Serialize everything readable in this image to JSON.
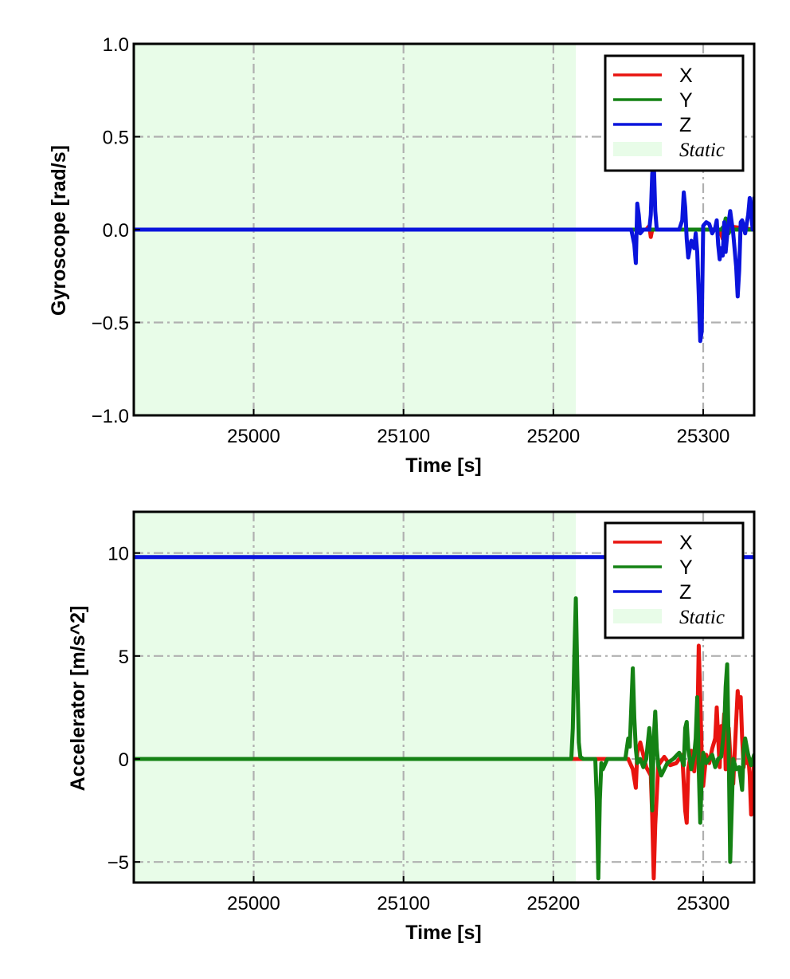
{
  "colors": {
    "x": "#e8140f",
    "y": "#148214",
    "z": "#0a14dc",
    "static_fill": "#e8fce8",
    "grid": "#b0b0b0"
  },
  "chart_data": [
    {
      "type": "line",
      "xlabel": "Time [s]",
      "ylabel": "Gyroscope [rad/s]",
      "xlim": [
        24920,
        25334
      ],
      "ylim": [
        -1.0,
        1.0
      ],
      "xticks": [
        25000,
        25100,
        25200,
        25300
      ],
      "xtick_labels": [
        "25000",
        "25100",
        "25200",
        "25300"
      ],
      "yticks": [
        -1.0,
        -0.5,
        0.0,
        0.5,
        1.0
      ],
      "ytick_labels": [
        "−1.0",
        "−0.5",
        "0.0",
        "0.5",
        "1.0"
      ],
      "grid": true,
      "legend_position": "top-right",
      "static_region": {
        "label": "Static",
        "x_start": 24920,
        "x_end": 25215
      },
      "series": [
        {
          "name": "X",
          "color_key": "x",
          "x": [
            24920,
            25250,
            25262,
            25264,
            25265,
            25266,
            25268,
            25280,
            25300,
            25311,
            25313,
            25315,
            25334
          ],
          "y": [
            0,
            0,
            0,
            0.02,
            -0.04,
            0.0,
            0,
            0,
            0,
            0.0,
            -0.05,
            0.02,
            0
          ]
        },
        {
          "name": "Y",
          "color_key": "y",
          "x": [
            24920,
            25250,
            25312,
            25314,
            25315,
            25316,
            25317,
            25318,
            25334
          ],
          "y": [
            0,
            0,
            0,
            0.02,
            0.06,
            0.02,
            -0.02,
            0,
            0
          ]
        },
        {
          "name": "Z",
          "color_key": "z",
          "x": [
            24920,
            25252,
            25254,
            25255,
            25256,
            25257,
            25258,
            25260,
            25264,
            25265,
            25266,
            25267,
            25268,
            25269,
            25270,
            25274,
            25284,
            25286,
            25287,
            25288,
            25289,
            25290,
            25292,
            25294,
            25295,
            25296,
            25297,
            25298,
            25299,
            25300,
            25302,
            25304,
            25306,
            25308,
            25309,
            25310,
            25311,
            25312,
            25313,
            25314,
            25315,
            25316,
            25317,
            25318,
            25320,
            25322,
            25323,
            25324,
            25325,
            25326,
            25327,
            25328,
            25329,
            25330,
            25331,
            25332,
            25333,
            25334
          ],
          "y": [
            0,
            0,
            -0.08,
            -0.18,
            0.14,
            0.08,
            -0.02,
            0.0,
            0.0,
            0.08,
            0.3,
            0.37,
            0.1,
            0.0,
            0.0,
            0.0,
            0.0,
            0.05,
            0.2,
            0.12,
            -0.05,
            -0.15,
            -0.06,
            -0.1,
            -0.02,
            -0.12,
            -0.35,
            -0.6,
            -0.55,
            0.02,
            0.04,
            0.03,
            -0.02,
            0.01,
            0.05,
            -0.08,
            -0.16,
            -0.1,
            -0.14,
            0.04,
            -0.12,
            -0.03,
            0.04,
            0.1,
            -0.02,
            -0.2,
            -0.36,
            -0.22,
            0.04,
            0.05,
            0.02,
            -0.02,
            0.03,
            0.08,
            0.17,
            0.09,
            0.0,
            0.17
          ]
        }
      ]
    },
    {
      "type": "line",
      "xlabel": "Time [s]",
      "ylabel": "Accelerator [m/s^2]",
      "xlim": [
        24920,
        25334
      ],
      "ylim": [
        -6,
        12
      ],
      "xticks": [
        25000,
        25100,
        25200,
        25300
      ],
      "xtick_labels": [
        "25000",
        "25100",
        "25200",
        "25300"
      ],
      "yticks": [
        -5,
        0,
        5,
        10
      ],
      "ytick_labels": [
        "−5",
        "0",
        "5",
        "10"
      ],
      "grid": true,
      "legend_position": "top-right",
      "static_region": {
        "label": "Static",
        "x_start": 24920,
        "x_end": 25215
      },
      "series": [
        {
          "name": "Z",
          "color_key": "z",
          "x": [
            24920,
            25334
          ],
          "y": [
            9.8,
            9.8
          ]
        },
        {
          "name": "X",
          "color_key": "x",
          "x": [
            24920,
            25250,
            25253,
            25255,
            25256,
            25258,
            25262,
            25265,
            25266,
            25267,
            25268,
            25270,
            25274,
            25278,
            25282,
            25286,
            25288,
            25289,
            25290,
            25292,
            25294,
            25296,
            25297,
            25298,
            25299,
            25300,
            25302,
            25304,
            25306,
            25308,
            25309,
            25310,
            25311,
            25312,
            25313,
            25314,
            25315,
            25316,
            25317,
            25318,
            25320,
            25322,
            25323,
            25324,
            25325,
            25326,
            25327,
            25328,
            25329,
            25330,
            25331,
            25332,
            25333,
            25334
          ],
          "y": [
            0,
            0,
            -0.5,
            -1.4,
            0.3,
            0.8,
            -0.4,
            -0.8,
            -2.8,
            -5.8,
            -3.2,
            -0.3,
            0.1,
            -0.3,
            -0.2,
            0.2,
            -2.5,
            -3.1,
            -0.5,
            0.4,
            -0.6,
            1.2,
            5.5,
            3.0,
            0.2,
            -1.3,
            0.2,
            -0.2,
            0.5,
            1.0,
            2.5,
            1.0,
            -0.4,
            1.6,
            1.0,
            2.2,
            -0.5,
            0.5,
            1.5,
            0.2,
            -1.2,
            1.8,
            3.3,
            2.5,
            3.0,
            1.0,
            -0.4,
            0.5,
            -0.2,
            0.2,
            -0.8,
            -2.7,
            -1.3,
            0.0
          ]
        },
        {
          "name": "Y",
          "color_key": "y",
          "x": [
            24920,
            25212,
            25213,
            25214,
            25215,
            25216,
            25217,
            25218,
            25220,
            25222,
            25225,
            25228,
            25229,
            25230,
            25231,
            25232,
            25233,
            25236,
            25240,
            25248,
            25250,
            25251,
            25252,
            25253,
            25254,
            25255,
            25256,
            25258,
            25260,
            25262,
            25264,
            25265,
            25266,
            25267,
            25268,
            25269,
            25270,
            25272,
            25276,
            25280,
            25284,
            25287,
            25288,
            25289,
            25290,
            25292,
            25294,
            25295,
            25296,
            25297,
            25298,
            25299,
            25300,
            25302,
            25304,
            25306,
            25308,
            25310,
            25312,
            25314,
            25315,
            25316,
            25317,
            25318,
            25320,
            25322,
            25324,
            25326,
            25327,
            25328,
            25330,
            25332,
            25334
          ],
          "y": [
            0,
            0,
            1.5,
            5.0,
            7.8,
            4.0,
            0.8,
            0.1,
            0.0,
            0.0,
            0.0,
            0.0,
            -2.0,
            -5.8,
            -2.0,
            -0.2,
            -0.5,
            0.0,
            0.0,
            0.0,
            1.0,
            0.6,
            2.5,
            4.4,
            2.0,
            0.5,
            -0.2,
            0.0,
            -0.4,
            0.0,
            1.5,
            0.4,
            -2.5,
            1.0,
            2.3,
            0.5,
            -0.3,
            -0.8,
            -0.2,
            0.0,
            0.3,
            -0.3,
            1.5,
            1.8,
            0.5,
            -0.5,
            0.2,
            1.0,
            3.0,
            -0.5,
            -3.1,
            -1.0,
            0.3,
            -0.2,
            0.0,
            0.2,
            -0.4,
            0.0,
            0.1,
            1.5,
            3.5,
            4.6,
            0.5,
            -5.0,
            0.0,
            -0.5,
            -0.4,
            -1.5,
            0.5,
            1.0,
            0.2,
            -0.3,
            0.2
          ]
        }
      ]
    }
  ]
}
